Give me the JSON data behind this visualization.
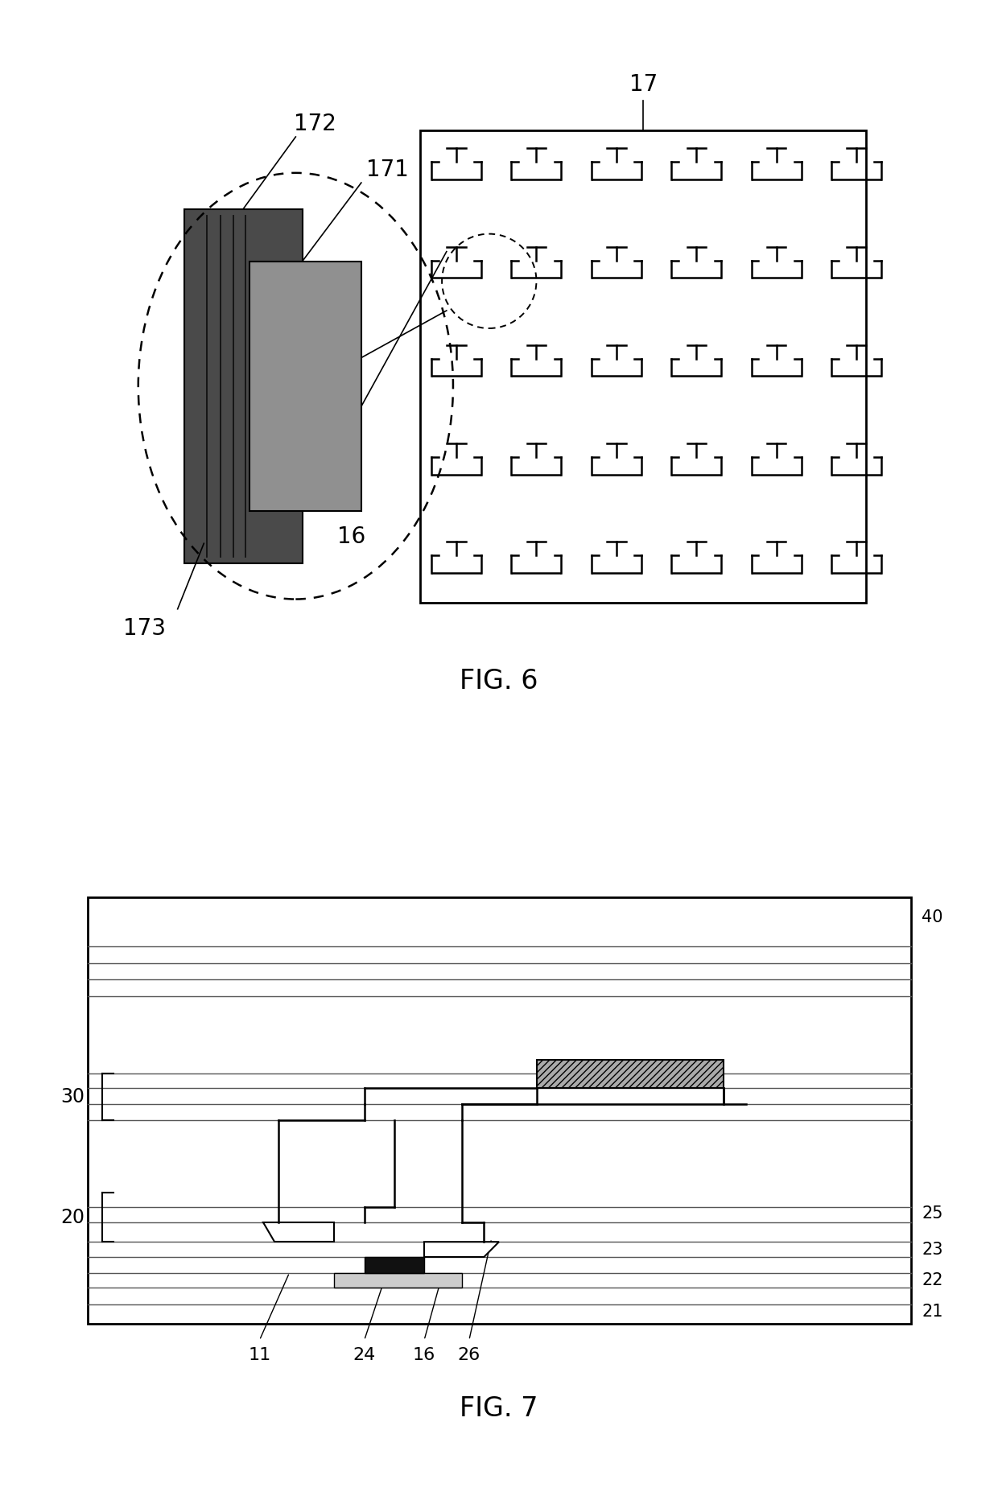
{
  "fig6_label": "FIG. 6",
  "fig7_label": "FIG. 7",
  "bg_color": "#ffffff",
  "dark_rect_color": "#4a4a4a",
  "mid_rect_color": "#909090",
  "channel_line_color": "#111111",
  "grid_border_color": "#000000",
  "tft_color": "#000000",
  "label_172": "172",
  "label_171": "171",
  "label_173": "173",
  "label_16": "16",
  "label_17": "17",
  "label_40": "40",
  "label_30": "30",
  "label_25": "25",
  "label_23": "23",
  "label_22": "22",
  "label_21": "21",
  "label_20": "20",
  "label_11": "11",
  "label_24": "24",
  "label_26": "26",
  "pixel_hatch_color": "#aaaaaa",
  "layer_line_color": "#555555"
}
